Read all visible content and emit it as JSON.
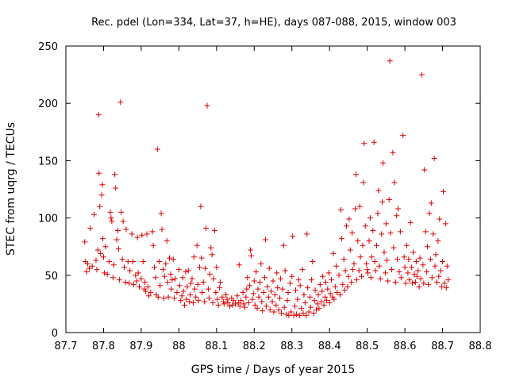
{
  "chart_data": {
    "type": "scatter",
    "title": "Rec. pdel (Lon=334, Lat=37, h=HE), days 087-088, 2015, window 003",
    "xlabel": "GPS time / Days of year 2015",
    "ylabel": "STEC from uqrg / TECUs",
    "xlim": [
      87.7,
      88.8
    ],
    "ylim": [
      0,
      250
    ],
    "xticks": [
      "87.7",
      "87.8",
      "87.9",
      "88",
      "88.1",
      "88.2",
      "88.3",
      "88.4",
      "88.5",
      "88.6",
      "88.7",
      "88.8"
    ],
    "yticks": [
      "0",
      "50",
      "100",
      "150",
      "200",
      "250"
    ],
    "grid": false,
    "marker": "+",
    "color": "#dd0000",
    "points": [
      [
        87.75,
        79
      ],
      [
        87.752,
        62
      ],
      [
        87.755,
        53
      ],
      [
        87.758,
        60
      ],
      [
        87.762,
        56
      ],
      [
        87.765,
        91
      ],
      [
        87.77,
        58
      ],
      [
        87.775,
        103
      ],
      [
        87.78,
        63
      ],
      [
        87.782,
        55
      ],
      [
        87.785,
        72
      ],
      [
        87.787,
        190
      ],
      [
        87.788,
        139
      ],
      [
        87.79,
        110
      ],
      [
        87.792,
        69
      ],
      [
        87.795,
        120
      ],
      [
        87.797,
        129
      ],
      [
        87.798,
        82
      ],
      [
        87.8,
        66
      ],
      [
        87.802,
        52
      ],
      [
        87.805,
        75
      ],
      [
        87.81,
        51
      ],
      [
        87.815,
        62
      ],
      [
        87.818,
        105
      ],
      [
        87.82,
        100
      ],
      [
        87.822,
        97
      ],
      [
        87.825,
        48
      ],
      [
        87.827,
        59
      ],
      [
        87.83,
        138
      ],
      [
        87.832,
        126
      ],
      [
        87.835,
        81
      ],
      [
        87.838,
        89
      ],
      [
        87.84,
        73
      ],
      [
        87.842,
        46
      ],
      [
        87.845,
        201
      ],
      [
        87.847,
        105
      ],
      [
        87.85,
        64
      ],
      [
        87.852,
        97
      ],
      [
        87.855,
        57
      ],
      [
        87.858,
        44
      ],
      [
        87.86,
        90
      ],
      [
        87.865,
        62
      ],
      [
        87.868,
        43
      ],
      [
        87.87,
        54
      ],
      [
        87.875,
        86
      ],
      [
        87.878,
        62
      ],
      [
        87.88,
        42
      ],
      [
        87.885,
        50
      ],
      [
        87.888,
        45
      ],
      [
        87.89,
        83
      ],
      [
        87.892,
        52
      ],
      [
        87.895,
        40
      ],
      [
        87.9,
        47
      ],
      [
        87.902,
        85
      ],
      [
        87.905,
        62
      ],
      [
        87.908,
        38
      ],
      [
        87.91,
        44
      ],
      [
        87.912,
        36
      ],
      [
        87.915,
        86
      ],
      [
        87.918,
        40
      ],
      [
        87.92,
        32
      ],
      [
        87.925,
        35
      ],
      [
        87.93,
        88
      ],
      [
        87.932,
        76
      ],
      [
        87.935,
        57
      ],
      [
        87.938,
        48
      ],
      [
        87.94,
        33
      ],
      [
        87.943,
        160
      ],
      [
        87.945,
        31
      ],
      [
        87.948,
        62
      ],
      [
        87.95,
        41
      ],
      [
        87.953,
        104
      ],
      [
        87.955,
        90
      ],
      [
        87.958,
        55
      ],
      [
        87.96,
        30
      ],
      [
        87.962,
        49
      ],
      [
        87.965,
        60
      ],
      [
        87.968,
        80
      ],
      [
        87.97,
        44
      ],
      [
        87.972,
        31
      ],
      [
        87.975,
        65
      ],
      [
        87.978,
        51
      ],
      [
        87.98,
        38
      ],
      [
        87.982,
        46
      ],
      [
        87.985,
        64
      ],
      [
        87.988,
        30
      ],
      [
        87.99,
        47
      ],
      [
        87.995,
        35
      ],
      [
        88.0,
        55
      ],
      [
        88.002,
        41
      ],
      [
        88.005,
        28
      ],
      [
        88.008,
        32
      ],
      [
        88.01,
        48
      ],
      [
        88.012,
        36
      ],
      [
        88.015,
        24
      ],
      [
        88.018,
        53
      ],
      [
        88.02,
        29
      ],
      [
        88.022,
        40
      ],
      [
        88.025,
        54
      ],
      [
        88.028,
        27
      ],
      [
        88.03,
        33
      ],
      [
        88.032,
        43
      ],
      [
        88.035,
        47
      ],
      [
        88.038,
        26
      ],
      [
        88.04,
        66
      ],
      [
        88.042,
        38
      ],
      [
        88.045,
        31
      ],
      [
        88.048,
        76
      ],
      [
        88.05,
        42
      ],
      [
        88.052,
        28
      ],
      [
        88.055,
        57
      ],
      [
        88.058,
        110
      ],
      [
        88.06,
        65
      ],
      [
        88.062,
        35
      ],
      [
        88.065,
        44
      ],
      [
        88.068,
        27
      ],
      [
        88.07,
        56
      ],
      [
        88.072,
        91
      ],
      [
        88.075,
        198
      ],
      [
        88.078,
        38
      ],
      [
        88.08,
        30
      ],
      [
        88.082,
        51
      ],
      [
        88.085,
        74
      ],
      [
        88.088,
        68
      ],
      [
        88.09,
        26
      ],
      [
        88.092,
        47
      ],
      [
        88.095,
        89
      ],
      [
        88.098,
        35
      ],
      [
        88.1,
        57
      ],
      [
        88.102,
        29
      ],
      [
        88.105,
        24
      ],
      [
        88.108,
        39
      ],
      [
        88.11,
        44
      ],
      [
        88.115,
        31
      ],
      [
        88.118,
        27
      ],
      [
        88.12,
        25
      ],
      [
        88.125,
        33
      ],
      [
        88.128,
        29
      ],
      [
        88.13,
        26
      ],
      [
        88.135,
        23
      ],
      [
        88.14,
        30
      ],
      [
        88.142,
        24
      ],
      [
        88.145,
        28
      ],
      [
        88.15,
        25
      ],
      [
        88.155,
        32
      ],
      [
        88.158,
        26
      ],
      [
        88.16,
        59
      ],
      [
        88.162,
        23
      ],
      [
        88.165,
        28
      ],
      [
        88.17,
        35
      ],
      [
        88.172,
        25
      ],
      [
        88.175,
        22
      ],
      [
        88.178,
        31
      ],
      [
        88.18,
        38
      ],
      [
        88.182,
        48
      ],
      [
        88.185,
        26
      ],
      [
        88.188,
        41
      ],
      [
        88.19,
        72
      ],
      [
        88.192,
        67
      ],
      [
        88.195,
        29
      ],
      [
        88.198,
        34
      ],
      [
        88.2,
        45
      ],
      [
        88.202,
        24
      ],
      [
        88.205,
        53
      ],
      [
        88.208,
        21
      ],
      [
        88.21,
        38
      ],
      [
        88.212,
        31
      ],
      [
        88.215,
        44
      ],
      [
        88.218,
        60
      ],
      [
        88.22,
        27
      ],
      [
        88.222,
        19
      ],
      [
        88.225,
        35
      ],
      [
        88.228,
        48
      ],
      [
        88.23,
        81
      ],
      [
        88.232,
        23
      ],
      [
        88.235,
        40
      ],
      [
        88.238,
        31
      ],
      [
        88.24,
        56
      ],
      [
        88.242,
        20
      ],
      [
        88.245,
        36
      ],
      [
        88.248,
        27
      ],
      [
        88.25,
        45
      ],
      [
        88.252,
        18
      ],
      [
        88.255,
        33
      ],
      [
        88.258,
        24
      ],
      [
        88.26,
        52
      ],
      [
        88.262,
        39
      ],
      [
        88.265,
        20
      ],
      [
        88.268,
        30
      ],
      [
        88.27,
        47
      ],
      [
        88.272,
        17
      ],
      [
        88.275,
        38
      ],
      [
        88.278,
        76
      ],
      [
        88.28,
        22
      ],
      [
        88.282,
        54
      ],
      [
        88.285,
        16
      ],
      [
        88.288,
        28
      ],
      [
        88.29,
        35
      ],
      [
        88.292,
        15
      ],
      [
        88.295,
        43
      ],
      [
        88.298,
        18
      ],
      [
        88.3,
        49
      ],
      [
        88.302,
        84
      ],
      [
        88.305,
        15
      ],
      [
        88.308,
        23
      ],
      [
        88.31,
        37
      ],
      [
        88.312,
        16
      ],
      [
        88.315,
        29
      ],
      [
        88.318,
        46
      ],
      [
        88.32,
        15
      ],
      [
        88.322,
        41
      ],
      [
        88.325,
        21
      ],
      [
        88.328,
        55
      ],
      [
        88.33,
        17
      ],
      [
        88.332,
        33
      ],
      [
        88.335,
        26
      ],
      [
        88.338,
        15
      ],
      [
        88.34,
        86
      ],
      [
        88.342,
        39
      ],
      [
        88.345,
        18
      ],
      [
        88.348,
        31
      ],
      [
        88.35,
        22
      ],
      [
        88.352,
        46
      ],
      [
        88.355,
        62
      ],
      [
        88.358,
        17
      ],
      [
        88.36,
        28
      ],
      [
        88.362,
        37
      ],
      [
        88.365,
        20
      ],
      [
        88.368,
        25
      ],
      [
        88.37,
        33
      ],
      [
        88.372,
        21
      ],
      [
        88.375,
        42
      ],
      [
        88.378,
        27
      ],
      [
        88.38,
        36
      ],
      [
        88.382,
        49
      ],
      [
        88.385,
        24
      ],
      [
        88.388,
        31
      ],
      [
        88.39,
        44
      ],
      [
        88.392,
        28
      ],
      [
        88.395,
        38
      ],
      [
        88.398,
        52
      ],
      [
        88.4,
        26
      ],
      [
        88.402,
        34
      ],
      [
        88.405,
        46
      ],
      [
        88.408,
        31
      ],
      [
        88.41,
        69
      ],
      [
        88.412,
        29
      ],
      [
        88.415,
        40
      ],
      [
        88.418,
        58
      ],
      [
        88.42,
        35
      ],
      [
        88.425,
        50
      ],
      [
        88.428,
        33
      ],
      [
        88.43,
        107
      ],
      [
        88.432,
        82
      ],
      [
        88.435,
        42
      ],
      [
        88.438,
        64
      ],
      [
        88.44,
        37
      ],
      [
        88.442,
        54
      ],
      [
        88.445,
        93
      ],
      [
        88.448,
        40
      ],
      [
        88.45,
        49
      ],
      [
        88.452,
        99
      ],
      [
        88.455,
        72
      ],
      [
        88.458,
        44
      ],
      [
        88.46,
        87
      ],
      [
        88.462,
        55
      ],
      [
        88.465,
        60
      ],
      [
        88.468,
        108
      ],
      [
        88.47,
        138
      ],
      [
        88.472,
        46
      ],
      [
        88.475,
        80
      ],
      [
        88.478,
        54
      ],
      [
        88.48,
        110
      ],
      [
        88.482,
        66
      ],
      [
        88.485,
        49
      ],
      [
        88.488,
        76
      ],
      [
        88.49,
        131
      ],
      [
        88.492,
        165
      ],
      [
        88.495,
        93
      ],
      [
        88.498,
        60
      ],
      [
        88.5,
        55
      ],
      [
        88.502,
        52
      ],
      [
        88.505,
        80
      ],
      [
        88.508,
        100
      ],
      [
        88.51,
        48
      ],
      [
        88.512,
        66
      ],
      [
        88.515,
        89
      ],
      [
        88.518,
        166
      ],
      [
        88.52,
        62
      ],
      [
        88.522,
        54
      ],
      [
        88.525,
        76
      ],
      [
        88.528,
        104
      ],
      [
        88.53,
        124
      ],
      [
        88.532,
        58
      ],
      [
        88.535,
        47
      ],
      [
        88.538,
        86
      ],
      [
        88.54,
        114
      ],
      [
        88.542,
        148
      ],
      [
        88.545,
        70
      ],
      [
        88.548,
        52
      ],
      [
        88.55,
        95
      ],
      [
        88.552,
        63
      ],
      [
        88.555,
        45
      ],
      [
        88.558,
        116
      ],
      [
        88.56,
        237
      ],
      [
        88.562,
        87
      ],
      [
        88.565,
        55
      ],
      [
        88.568,
        157
      ],
      [
        88.57,
        74
      ],
      [
        88.572,
        131
      ],
      [
        88.575,
        44
      ],
      [
        88.578,
        102
      ],
      [
        88.58,
        64
      ],
      [
        88.582,
        108
      ],
      [
        88.585,
        53
      ],
      [
        88.588,
        88
      ],
      [
        88.59,
        48
      ],
      [
        88.595,
        172
      ],
      [
        88.598,
        66
      ],
      [
        88.6,
        57
      ],
      [
        88.602,
        43
      ],
      [
        88.605,
        76
      ],
      [
        88.608,
        52
      ],
      [
        88.61,
        64
      ],
      [
        88.612,
        46
      ],
      [
        88.615,
        96
      ],
      [
        88.618,
        57
      ],
      [
        88.62,
        43
      ],
      [
        88.622,
        70
      ],
      [
        88.625,
        51
      ],
      [
        88.628,
        44
      ],
      [
        88.63,
        62
      ],
      [
        88.632,
        49
      ],
      [
        88.635,
        54
      ],
      [
        88.638,
        40
      ],
      [
        88.64,
        65
      ],
      [
        88.642,
        47
      ],
      [
        88.645,
        225
      ],
      [
        88.648,
        59
      ],
      [
        88.65,
        43
      ],
      [
        88.652,
        142
      ],
      [
        88.655,
        88
      ],
      [
        88.658,
        53
      ],
      [
        88.66,
        75
      ],
      [
        88.662,
        42
      ],
      [
        88.665,
        104
      ],
      [
        88.668,
        64
      ],
      [
        88.67,
        113
      ],
      [
        88.672,
        48
      ],
      [
        88.675,
        86
      ],
      [
        88.678,
        152
      ],
      [
        88.68,
        58
      ],
      [
        88.682,
        68
      ],
      [
        88.685,
        44
      ],
      [
        88.688,
        80
      ],
      [
        88.69,
        49
      ],
      [
        88.692,
        99
      ],
      [
        88.695,
        54
      ],
      [
        88.698,
        40
      ],
      [
        88.7,
        62
      ],
      [
        88.702,
        123
      ],
      [
        88.705,
        43
      ],
      [
        88.708,
        95
      ],
      [
        88.71,
        39
      ],
      [
        88.712,
        58
      ],
      [
        88.715,
        46
      ]
    ]
  }
}
